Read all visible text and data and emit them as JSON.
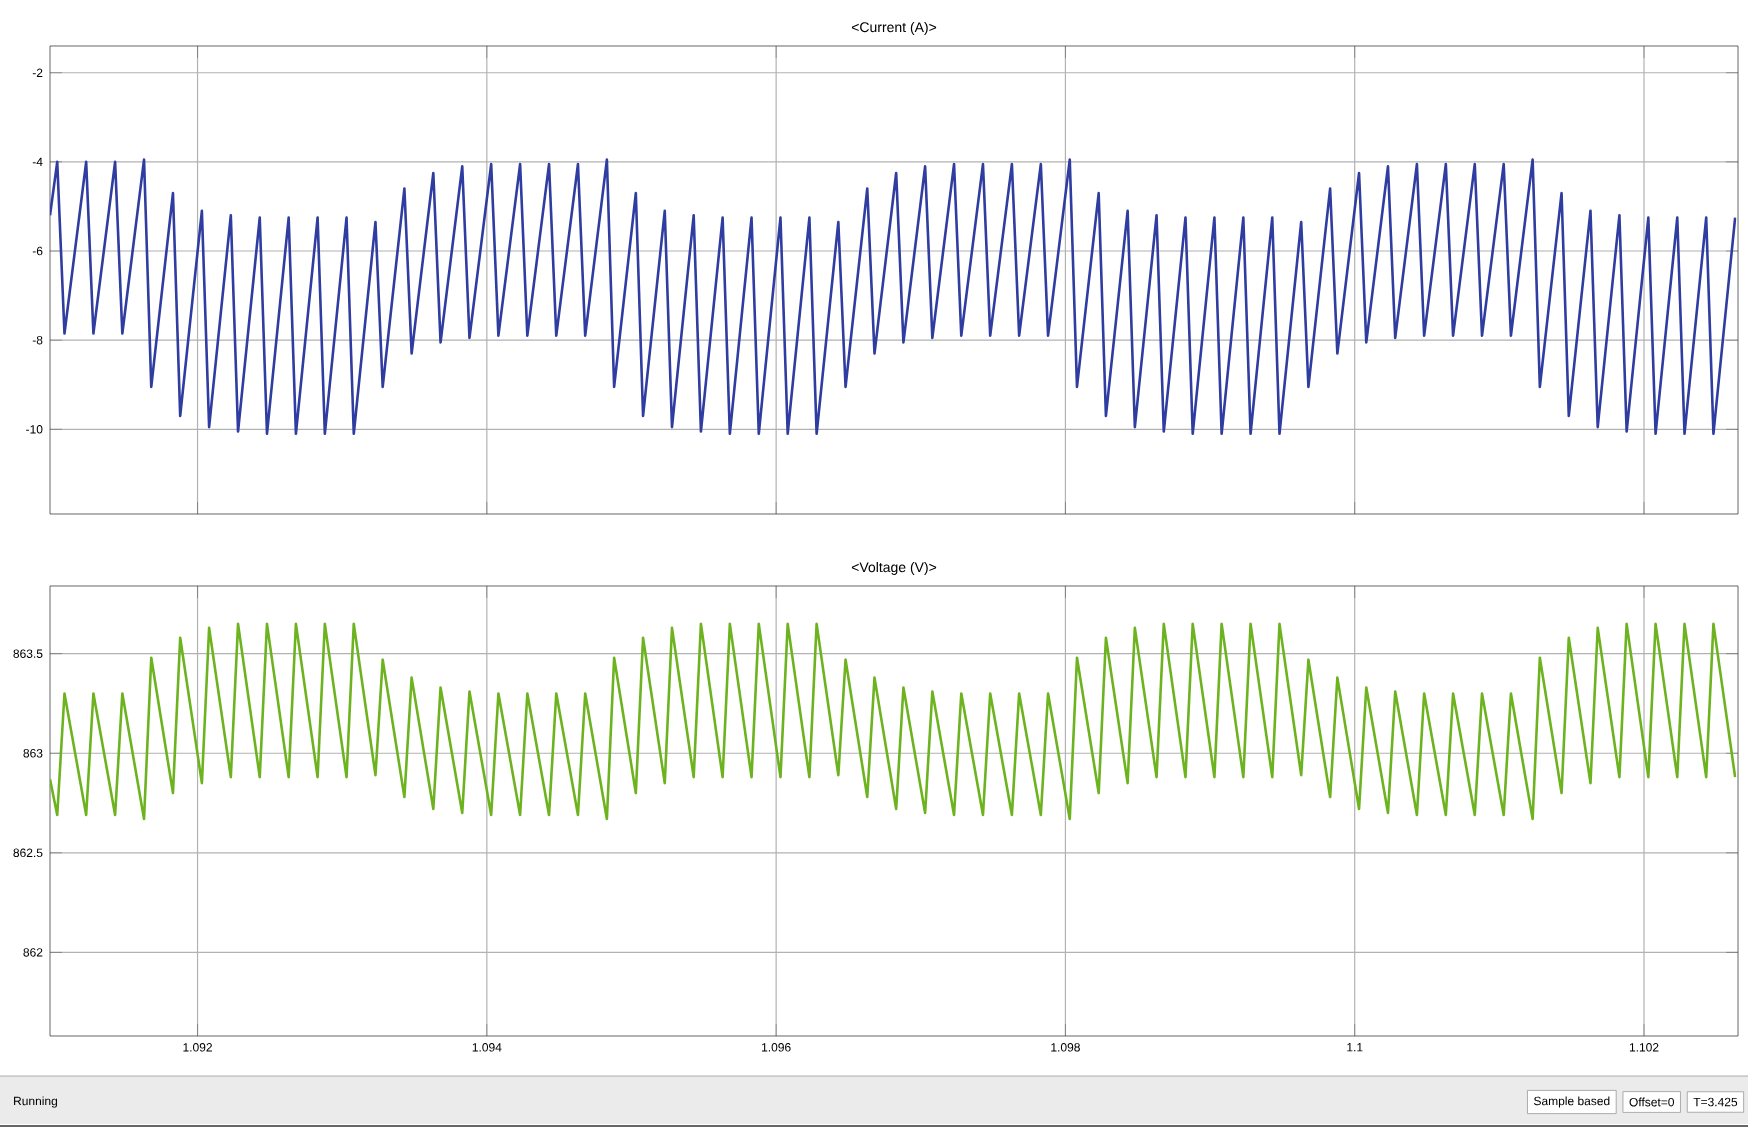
{
  "chart_data": [
    {
      "type": "line",
      "title": "<Current (A)>",
      "color": "#2f3ca0",
      "line_style": "solid",
      "marker": "none",
      "grid": true,
      "tick_labels": "y",
      "xlim": [
        1.09098,
        1.10265
      ],
      "ylim": [
        -11.9,
        -1.4
      ],
      "xticks": [
        {
          "value": 1.092,
          "label": null
        },
        {
          "value": 1.094,
          "label": null
        },
        {
          "value": 1.096,
          "label": null
        },
        {
          "value": 1.098,
          "label": null
        },
        {
          "value": 1.1,
          "label": null
        },
        {
          "value": 1.102,
          "label": null
        }
      ],
      "yticks": [
        -10,
        -8,
        -6,
        -4,
        -2
      ],
      "x": [
        1.09098,
        1.09103,
        1.09108,
        1.09123,
        1.09128,
        1.09143,
        1.09148,
        1.09163,
        1.09168,
        1.09183,
        1.09188,
        1.09203,
        1.09208,
        1.09223,
        1.09228,
        1.09243,
        1.09248,
        1.09263,
        1.09268,
        1.09283,
        1.09288,
        1.09303,
        1.09308,
        1.09323,
        1.09328,
        1.09343,
        1.09348,
        1.09363,
        1.09368,
        1.09383,
        1.09388,
        1.09403,
        1.09408,
        1.09423,
        1.09428,
        1.09443,
        1.09448,
        1.09463,
        1.09468,
        1.09483,
        1.09488,
        1.09503,
        1.09508,
        1.09523,
        1.09528,
        1.09543,
        1.09548,
        1.09563,
        1.09568,
        1.09583,
        1.09588,
        1.09603,
        1.09608,
        1.09623,
        1.09628,
        1.09643,
        1.09648,
        1.09663,
        1.09668,
        1.09683,
        1.09688,
        1.09703,
        1.09708,
        1.09723,
        1.09728,
        1.09743,
        1.09748,
        1.09763,
        1.09768,
        1.09783,
        1.09788,
        1.09803,
        1.09808,
        1.09823,
        1.09828,
        1.09843,
        1.09848,
        1.09863,
        1.09868,
        1.09883,
        1.09888,
        1.09903,
        1.09908,
        1.09923,
        1.09928,
        1.09943,
        1.09948,
        1.09963,
        1.09968,
        1.09983,
        1.09988,
        1.10003,
        1.10008,
        1.10023,
        1.10028,
        1.10043,
        1.10048,
        1.10063,
        1.10068,
        1.10083,
        1.10088,
        1.10103,
        1.10108,
        1.10123,
        1.10128,
        1.10143,
        1.10148,
        1.10163,
        1.10168,
        1.10183,
        1.10188,
        1.10203,
        1.10208,
        1.10223,
        1.10228,
        1.10243,
        1.10248,
        1.10263
      ],
      "values": [
        -5.2,
        -4.0,
        -7.85,
        -4.0,
        -7.85,
        -4.0,
        -7.85,
        -3.95,
        -9.05,
        -4.7,
        -9.7,
        -5.1,
        -9.95,
        -5.2,
        -10.05,
        -5.25,
        -10.1,
        -5.25,
        -10.1,
        -5.25,
        -10.1,
        -5.25,
        -10.1,
        -5.35,
        -9.05,
        -4.6,
        -8.3,
        -4.25,
        -8.05,
        -4.1,
        -7.95,
        -4.05,
        -7.9,
        -4.05,
        -7.9,
        -4.05,
        -7.9,
        -4.05,
        -7.9,
        -3.95,
        -9.05,
        -4.7,
        -9.7,
        -5.1,
        -9.95,
        -5.2,
        -10.05,
        -5.25,
        -10.1,
        -5.25,
        -10.1,
        -5.25,
        -10.1,
        -5.25,
        -10.1,
        -5.35,
        -9.05,
        -4.6,
        -8.3,
        -4.25,
        -8.05,
        -4.1,
        -7.95,
        -4.05,
        -7.9,
        -4.05,
        -7.9,
        -4.05,
        -7.9,
        -4.05,
        -7.9,
        -3.95,
        -9.05,
        -4.7,
        -9.7,
        -5.1,
        -9.95,
        -5.2,
        -10.05,
        -5.25,
        -10.1,
        -5.25,
        -10.1,
        -5.25,
        -10.1,
        -5.25,
        -10.1,
        -5.35,
        -9.05,
        -4.6,
        -8.3,
        -4.25,
        -8.05,
        -4.1,
        -7.95,
        -4.05,
        -7.9,
        -4.05,
        -7.9,
        -4.05,
        -7.9,
        -4.05,
        -7.9,
        -3.95,
        -9.05,
        -4.7,
        -9.7,
        -5.1,
        -9.95,
        -5.2,
        -10.05,
        -5.25,
        -10.1,
        -5.25,
        -10.1,
        -5.25,
        -10.1,
        -5.25
      ]
    },
    {
      "type": "line",
      "title": "<Voltage (V)>",
      "color": "#6db31f",
      "line_style": "solid",
      "marker": "none",
      "grid": true,
      "xlim": [
        1.09098,
        1.10265
      ],
      "ylim": [
        861.58,
        863.84
      ],
      "xticks": [
        1.092,
        1.094,
        1.096,
        1.098,
        1.1,
        1.102
      ],
      "yticks": [
        862,
        862.5,
        863,
        863.5
      ],
      "annotations": [
        "Running",
        "Sample based",
        "Offset=0",
        "T=3.425"
      ],
      "x": [
        1.09098,
        1.09103,
        1.09108,
        1.09123,
        1.09128,
        1.09143,
        1.09148,
        1.09163,
        1.09168,
        1.09183,
        1.09188,
        1.09203,
        1.09208,
        1.09223,
        1.09228,
        1.09243,
        1.09248,
        1.09263,
        1.09268,
        1.09283,
        1.09288,
        1.09303,
        1.09308,
        1.09323,
        1.09328,
        1.09343,
        1.09348,
        1.09363,
        1.09368,
        1.09383,
        1.09388,
        1.09403,
        1.09408,
        1.09423,
        1.09428,
        1.09443,
        1.09448,
        1.09463,
        1.09468,
        1.09483,
        1.09488,
        1.09503,
        1.09508,
        1.09523,
        1.09528,
        1.09543,
        1.09548,
        1.09563,
        1.09568,
        1.09583,
        1.09588,
        1.09603,
        1.09608,
        1.09623,
        1.09628,
        1.09643,
        1.09648,
        1.09663,
        1.09668,
        1.09683,
        1.09688,
        1.09703,
        1.09708,
        1.09723,
        1.09728,
        1.09743,
        1.09748,
        1.09763,
        1.09768,
        1.09783,
        1.09788,
        1.09803,
        1.09808,
        1.09823,
        1.09828,
        1.09843,
        1.09848,
        1.09863,
        1.09868,
        1.09883,
        1.09888,
        1.09903,
        1.09908,
        1.09923,
        1.09928,
        1.09943,
        1.09948,
        1.09963,
        1.09968,
        1.09983,
        1.09988,
        1.10003,
        1.10008,
        1.10023,
        1.10028,
        1.10043,
        1.10048,
        1.10063,
        1.10068,
        1.10083,
        1.10088,
        1.10103,
        1.10108,
        1.10123,
        1.10128,
        1.10143,
        1.10148,
        1.10163,
        1.10168,
        1.10183,
        1.10188,
        1.10203,
        1.10208,
        1.10223,
        1.10228,
        1.10243,
        1.10248,
        1.10263
      ],
      "values": [
        862.87,
        862.69,
        863.3,
        862.69,
        863.3,
        862.69,
        863.3,
        862.67,
        863.48,
        862.8,
        863.58,
        862.85,
        863.63,
        862.88,
        863.65,
        862.88,
        863.65,
        862.88,
        863.65,
        862.88,
        863.65,
        862.88,
        863.65,
        862.89,
        863.47,
        862.78,
        863.38,
        862.72,
        863.33,
        862.7,
        863.31,
        862.69,
        863.3,
        862.69,
        863.3,
        862.69,
        863.3,
        862.69,
        863.3,
        862.67,
        863.48,
        862.8,
        863.58,
        862.85,
        863.63,
        862.88,
        863.65,
        862.88,
        863.65,
        862.88,
        863.65,
        862.88,
        863.65,
        862.88,
        863.65,
        862.89,
        863.47,
        862.78,
        863.38,
        862.72,
        863.33,
        862.7,
        863.31,
        862.69,
        863.3,
        862.69,
        863.3,
        862.69,
        863.3,
        862.69,
        863.3,
        862.67,
        863.48,
        862.8,
        863.58,
        862.85,
        863.63,
        862.88,
        863.65,
        862.88,
        863.65,
        862.88,
        863.65,
        862.88,
        863.65,
        862.88,
        863.65,
        862.89,
        863.47,
        862.78,
        863.38,
        862.72,
        863.33,
        862.7,
        863.31,
        862.69,
        863.3,
        862.69,
        863.3,
        862.69,
        863.3,
        862.69,
        863.3,
        862.67,
        863.48,
        862.8,
        863.58,
        862.85,
        863.63,
        862.88,
        863.65,
        862.88,
        863.65,
        862.88,
        863.65,
        862.88,
        863.65,
        862.88
      ]
    }
  ]
}
